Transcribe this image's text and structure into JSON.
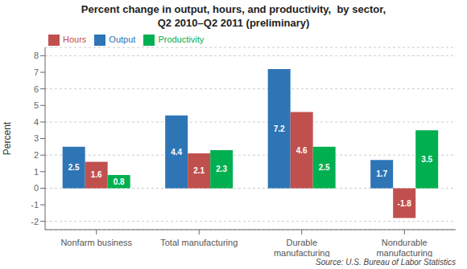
{
  "chart_data": {
    "type": "bar",
    "title": "Percent change in output, hours, and productivity,  by sector,\nQ2 2010–Q2 2011 (preliminary)",
    "categories": [
      "Nonfarm business",
      "Total manufacturing",
      "Durable\nmanufacturing",
      "Nondurable\nmanufacturing"
    ],
    "series": [
      {
        "name": "Output",
        "color": "#2E75B6",
        "values": [
          2.5,
          4.4,
          7.2,
          1.7
        ]
      },
      {
        "name": "Hours",
        "color": "#C0504D",
        "values": [
          1.6,
          2.1,
          4.6,
          -1.8
        ]
      },
      {
        "name": "Productivity",
        "color": "#00B050",
        "values": [
          0.8,
          2.3,
          2.5,
          3.5
        ]
      }
    ],
    "ylabel": "Percent",
    "ylim": [
      -2.5,
      8.5
    ],
    "yticks": [
      -2,
      -1,
      0,
      1,
      2,
      3,
      4,
      5,
      6,
      7,
      8
    ],
    "grid": true,
    "legend": "upper left",
    "data_labels": true,
    "annotations": [
      "Source: U.S. Bureau of Labor Statistics"
    ]
  }
}
